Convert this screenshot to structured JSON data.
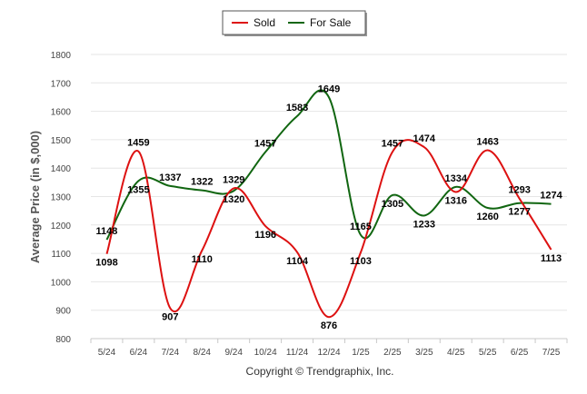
{
  "chart_data": {
    "type": "line",
    "categories": [
      "5/24",
      "6/24",
      "7/24",
      "8/24",
      "9/24",
      "10/24",
      "11/24",
      "12/24",
      "1/25",
      "2/25",
      "3/25",
      "4/25",
      "5/25",
      "6/25",
      "7/25"
    ],
    "series": [
      {
        "name": "Sold",
        "color": "#dd1111",
        "values": [
          1098,
          1459,
          907,
          1110,
          1329,
          1196,
          1104,
          876,
          1103,
          1457,
          1474,
          1316,
          1463,
          1293,
          1113
        ]
      },
      {
        "name": "For Sale",
        "color": "#116611",
        "values": [
          1148,
          1355,
          1337,
          1322,
          1320,
          1457,
          1583,
          1649,
          1165,
          1305,
          1233,
          1334,
          1260,
          1277,
          1274
        ]
      }
    ],
    "ylabel": "Average Price (in $,000)",
    "ylim": [
      800,
      1800
    ],
    "yticks": [
      800,
      900,
      1000,
      1100,
      1200,
      1300,
      1400,
      1500,
      1600,
      1700,
      1800
    ],
    "grid": "horizontal",
    "legend_position": "top-center"
  },
  "footer": {
    "copyright": "Copyright © Trendgraphix, Inc."
  }
}
